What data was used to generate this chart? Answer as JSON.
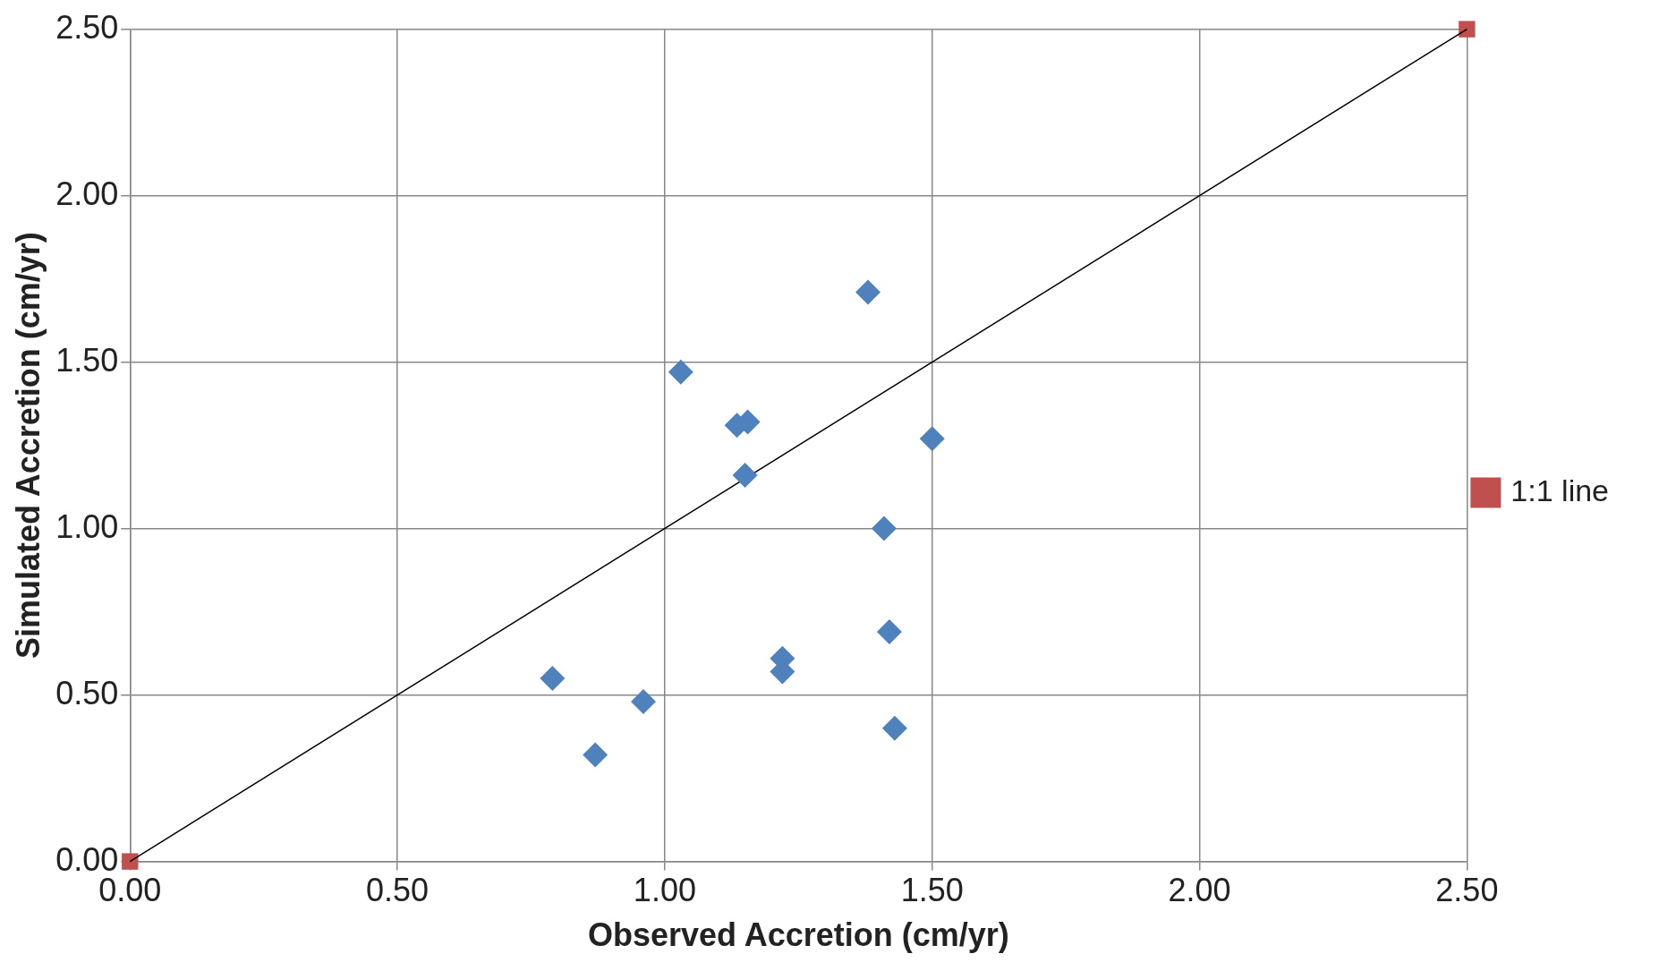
{
  "chart_data": {
    "type": "scatter",
    "xlabel": "Observed Accretion (cm/yr)",
    "ylabel": "Simulated Accretion (cm/yr)",
    "xlim": [
      0,
      2.5
    ],
    "ylim": [
      0,
      2.5
    ],
    "xticks": [
      {
        "value": 0,
        "label": "0.00"
      },
      {
        "value": 0.5,
        "label": "0.50"
      },
      {
        "value": 1,
        "label": "1.00"
      },
      {
        "value": 1.5,
        "label": "1.50"
      },
      {
        "value": 2,
        "label": "2.00"
      },
      {
        "value": 2.5,
        "label": "2.50"
      }
    ],
    "yticks": [
      {
        "value": 0,
        "label": "0.00"
      },
      {
        "value": 0.5,
        "label": "0.50"
      },
      {
        "value": 1,
        "label": "1.00"
      },
      {
        "value": 1.5,
        "label": "1.50"
      },
      {
        "value": 2,
        "label": "2.00"
      },
      {
        "value": 2.5,
        "label": "2.50"
      }
    ],
    "grid": true,
    "legend": "right",
    "series": [
      {
        "type": "scatter",
        "marker": "diamond",
        "color": "#4f81bd",
        "x": [
          0.79,
          0.87,
          0.96,
          1.03,
          1.135,
          1.155,
          1.15,
          1.22,
          1.22,
          1.38,
          1.41,
          1.42,
          1.43,
          1.5
        ],
        "values": [
          0.55,
          0.32,
          0.48,
          1.47,
          1.31,
          1.32,
          1.16,
          0.61,
          0.57,
          1.71,
          1.0,
          0.69,
          0.4,
          1.27
        ]
      },
      {
        "type": "line",
        "marker": "none",
        "color": "#000000",
        "x": [
          0,
          2.5
        ],
        "values": [
          0,
          2.5
        ]
      },
      {
        "type": "scatter",
        "name": "1:1 line",
        "marker": "square",
        "color": "#c0504d",
        "x": [
          0,
          2.5
        ],
        "values": [
          0,
          2.5
        ]
      }
    ]
  }
}
